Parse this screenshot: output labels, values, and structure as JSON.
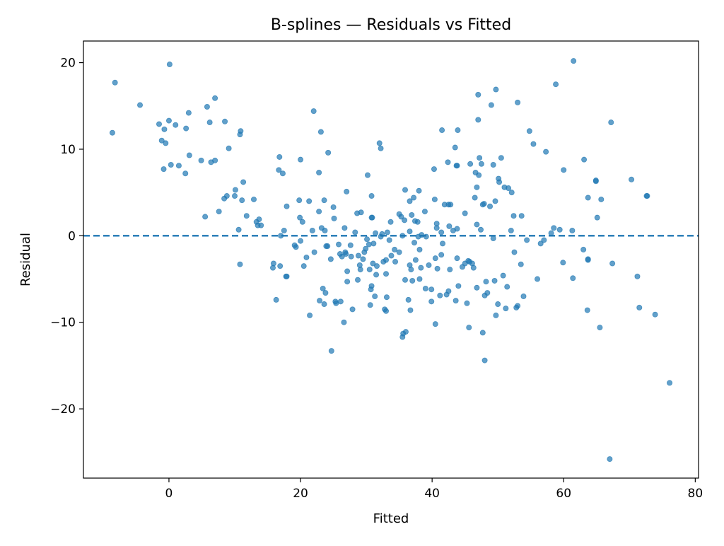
{
  "chart_data": {
    "type": "scatter",
    "title": "B-splines — Residuals vs Fitted",
    "xlabel": "Fitted",
    "ylabel": "Residual",
    "xlim": [
      -13,
      80.5
    ],
    "ylim": [
      -28,
      22.5
    ],
    "x_ticks": [
      0,
      20,
      40,
      60,
      80
    ],
    "x_tick_labels": [
      "0",
      "20",
      "40",
      "60",
      "80"
    ],
    "y_ticks": [
      -20,
      -10,
      0,
      10,
      20
    ],
    "y_tick_labels": [
      "−20",
      "−10",
      "0",
      "10",
      "20"
    ],
    "grid": false,
    "reference_line": {
      "y": 0,
      "style": "dashed",
      "color": "#1f77b4"
    },
    "point_color": "#1f77b4",
    "point_opacity": 0.7,
    "points": [
      [
        -8.6,
        11.9
      ],
      [
        -8.2,
        17.7
      ],
      [
        -4.4,
        15.1
      ],
      [
        -1.5,
        12.9
      ],
      [
        -1.1,
        11.0
      ],
      [
        -0.8,
        7.7
      ],
      [
        -0.7,
        12.3
      ],
      [
        -0.5,
        10.7
      ],
      [
        0.0,
        13.3
      ],
      [
        0.1,
        19.8
      ],
      [
        0.3,
        8.2
      ],
      [
        1.0,
        12.8
      ],
      [
        1.5,
        8.1
      ],
      [
        2.5,
        7.2
      ],
      [
        2.6,
        12.4
      ],
      [
        3.0,
        14.2
      ],
      [
        3.1,
        9.3
      ],
      [
        4.9,
        8.7
      ],
      [
        5.5,
        2.2
      ],
      [
        5.8,
        14.9
      ],
      [
        6.2,
        13.1
      ],
      [
        6.4,
        8.5
      ],
      [
        7.0,
        8.7
      ],
      [
        7.0,
        15.9
      ],
      [
        7.6,
        2.8
      ],
      [
        8.4,
        4.3
      ],
      [
        8.5,
        13.2
      ],
      [
        8.8,
        4.6
      ],
      [
        9.1,
        10.1
      ],
      [
        10.0,
        4.6
      ],
      [
        10.1,
        5.3
      ],
      [
        10.6,
        0.7
      ],
      [
        10.8,
        -3.3
      ],
      [
        10.8,
        11.7
      ],
      [
        10.9,
        12.1
      ],
      [
        11.1,
        4.1
      ],
      [
        11.3,
        6.2
      ],
      [
        11.8,
        2.3
      ],
      [
        12.9,
        4.2
      ],
      [
        13.3,
        1.6
      ],
      [
        13.5,
        1.2
      ],
      [
        13.7,
        1.9
      ],
      [
        14.0,
        1.2
      ],
      [
        15.8,
        -3.7
      ],
      [
        15.9,
        -3.2
      ],
      [
        16.3,
        -7.4
      ],
      [
        16.7,
        7.6
      ],
      [
        16.8,
        9.1
      ],
      [
        16.9,
        -3.5
      ],
      [
        17.0,
        0.0
      ],
      [
        17.3,
        7.2
      ],
      [
        17.5,
        0.6
      ],
      [
        17.8,
        -4.7
      ],
      [
        17.9,
        -4.7
      ],
      [
        17.9,
        3.4
      ],
      [
        19.1,
        -1.1
      ],
      [
        19.3,
        -1.3
      ],
      [
        19.8,
        4.1
      ],
      [
        19.9,
        2.1
      ],
      [
        20.0,
        -0.6
      ],
      [
        20.0,
        8.8
      ],
      [
        20.3,
        1.6
      ],
      [
        20.5,
        -3.5
      ],
      [
        20.9,
        -2.5
      ],
      [
        21.3,
        4.0
      ],
      [
        21.4,
        -9.2
      ],
      [
        21.8,
        0.6
      ],
      [
        22.0,
        14.4
      ],
      [
        22.1,
        -1.9
      ],
      [
        22.8,
        2.8
      ],
      [
        22.8,
        7.3
      ],
      [
        22.9,
        -7.5
      ],
      [
        23.1,
        12.0
      ],
      [
        23.2,
        0.9
      ],
      [
        23.4,
        -6.1
      ],
      [
        23.6,
        4.1
      ],
      [
        23.6,
        -7.9
      ],
      [
        23.7,
        0.6
      ],
      [
        23.8,
        -6.6
      ],
      [
        23.9,
        -1.2
      ],
      [
        24.1,
        -1.2
      ],
      [
        24.2,
        9.6
      ],
      [
        24.6,
        -2.7
      ],
      [
        24.7,
        -13.3
      ],
      [
        25.0,
        3.3
      ],
      [
        25.1,
        2.0
      ],
      [
        25.3,
        -7.6
      ],
      [
        25.4,
        -7.8
      ],
      [
        25.8,
        -1.0
      ],
      [
        26.0,
        -2.1
      ],
      [
        26.1,
        -7.6
      ],
      [
        26.3,
        -2.4
      ],
      [
        26.6,
        -10.0
      ],
      [
        26.7,
        0.9
      ],
      [
        26.8,
        -1.9
      ],
      [
        26.9,
        -2.1
      ],
      [
        27.0,
        5.1
      ],
      [
        27.1,
        -4.1
      ],
      [
        27.1,
        -5.3
      ],
      [
        27.6,
        -1.1
      ],
      [
        27.7,
        -2.4
      ],
      [
        27.9,
        -8.5
      ],
      [
        28.3,
        0.4
      ],
      [
        28.6,
        2.6
      ],
      [
        28.7,
        -5.1
      ],
      [
        28.8,
        -2.3
      ],
      [
        29.0,
        -3.4
      ],
      [
        29.1,
        -3.9
      ],
      [
        29.2,
        2.7
      ],
      [
        29.5,
        -2.7
      ],
      [
        29.7,
        -1.9
      ],
      [
        29.9,
        -1.5
      ],
      [
        30.1,
        -0.4
      ],
      [
        30.2,
        7.0
      ],
      [
        30.4,
        -1.0
      ],
      [
        30.5,
        -3.9
      ],
      [
        30.6,
        -8.0
      ],
      [
        30.7,
        -6.2
      ],
      [
        30.8,
        4.6
      ],
      [
        30.8,
        -5.8
      ],
      [
        30.8,
        2.1
      ],
      [
        30.9,
        2.1
      ],
      [
        31.0,
        -3.2
      ],
      [
        31.1,
        -0.9
      ],
      [
        31.3,
        -7.0
      ],
      [
        31.4,
        0.3
      ],
      [
        31.5,
        -4.5
      ],
      [
        31.6,
        -3.5
      ],
      [
        32.0,
        10.7
      ],
      [
        32.2,
        -0.1
      ],
      [
        32.2,
        10.1
      ],
      [
        32.4,
        0.2
      ],
      [
        32.6,
        -3.0
      ],
      [
        32.8,
        -8.5
      ],
      [
        33.0,
        -8.7
      ],
      [
        33.0,
        -4.4
      ],
      [
        33.0,
        -2.8
      ],
      [
        33.1,
        -7.1
      ],
      [
        33.2,
        0.4
      ],
      [
        33.5,
        -0.5
      ],
      [
        33.7,
        1.6
      ],
      [
        33.8,
        -2.3
      ],
      [
        34.3,
        -1.6
      ],
      [
        34.4,
        -3.0
      ],
      [
        35.0,
        -1.9
      ],
      [
        35.0,
        2.5
      ],
      [
        35.3,
        2.2
      ],
      [
        35.5,
        0.0
      ],
      [
        35.5,
        -11.7
      ],
      [
        35.6,
        -11.3
      ],
      [
        35.8,
        1.8
      ],
      [
        35.9,
        5.3
      ],
      [
        35.9,
        -5.1
      ],
      [
        36.0,
        -11.1
      ],
      [
        36.4,
        -7.4
      ],
      [
        36.6,
        0.5
      ],
      [
        36.6,
        -3.4
      ],
      [
        36.6,
        4.0
      ],
      [
        36.7,
        -8.6
      ],
      [
        36.8,
        -3.9
      ],
      [
        36.9,
        2.4
      ],
      [
        37.0,
        -5.2
      ],
      [
        37.2,
        4.4
      ],
      [
        37.3,
        -0.8
      ],
      [
        37.4,
        1.7
      ],
      [
        37.5,
        -2.8
      ],
      [
        37.8,
        1.6
      ],
      [
        37.9,
        -0.1
      ],
      [
        38.0,
        5.2
      ],
      [
        38.1,
        -5.0
      ],
      [
        38.1,
        -1.6
      ],
      [
        38.3,
        -3.7
      ],
      [
        38.4,
        0.1
      ],
      [
        38.9,
        2.8
      ],
      [
        39.0,
        -6.1
      ],
      [
        39.1,
        -0.1
      ],
      [
        39.5,
        -3.4
      ],
      [
        39.9,
        -7.6
      ],
      [
        39.9,
        -6.2
      ],
      [
        40.3,
        7.7
      ],
      [
        40.4,
        4.2
      ],
      [
        40.5,
        -2.6
      ],
      [
        40.5,
        -10.2
      ],
      [
        40.7,
        0.9
      ],
      [
        40.7,
        1.4
      ],
      [
        40.8,
        -3.8
      ],
      [
        41.2,
        -6.9
      ],
      [
        41.4,
        0.4
      ],
      [
        41.4,
        -2.2
      ],
      [
        41.5,
        12.2
      ],
      [
        41.6,
        -0.9
      ],
      [
        41.9,
        3.6
      ],
      [
        42.2,
        -6.8
      ],
      [
        42.4,
        8.5
      ],
      [
        42.5,
        -6.4
      ],
      [
        42.5,
        3.6
      ],
      [
        42.6,
        1.1
      ],
      [
        42.7,
        -3.9
      ],
      [
        42.8,
        3.6
      ],
      [
        43.2,
        0.6
      ],
      [
        43.5,
        10.2
      ],
      [
        43.6,
        -7.5
      ],
      [
        43.7,
        8.1
      ],
      [
        43.8,
        0.8
      ],
      [
        43.8,
        -2.6
      ],
      [
        43.8,
        8.1
      ],
      [
        43.9,
        12.2
      ],
      [
        44.0,
        -5.8
      ],
      [
        44.6,
        -3.6
      ],
      [
        45.0,
        -3.2
      ],
      [
        45.0,
        2.6
      ],
      [
        45.3,
        -7.8
      ],
      [
        45.5,
        -2.9
      ],
      [
        45.6,
        -10.6
      ],
      [
        45.7,
        -3.0
      ],
      [
        45.8,
        8.3
      ],
      [
        46.1,
        -3.2
      ],
      [
        46.3,
        -3.7
      ],
      [
        46.5,
        4.4
      ],
      [
        46.6,
        7.3
      ],
      [
        46.8,
        5.6
      ],
      [
        46.8,
        1.3
      ],
      [
        46.8,
        -6.0
      ],
      [
        47.0,
        13.4
      ],
      [
        47.0,
        16.3
      ],
      [
        47.1,
        7.0
      ],
      [
        47.2,
        9.0
      ],
      [
        47.4,
        0.7
      ],
      [
        47.5,
        8.3
      ],
      [
        47.7,
        -11.2
      ],
      [
        47.7,
        3.6
      ],
      [
        47.9,
        3.7
      ],
      [
        48.0,
        -6.9
      ],
      [
        48.0,
        -14.4
      ],
      [
        48.2,
        -5.3
      ],
      [
        48.4,
        -6.6
      ],
      [
        48.8,
        3.4
      ],
      [
        49.0,
        15.1
      ],
      [
        49.3,
        -0.3
      ],
      [
        49.3,
        8.2
      ],
      [
        49.5,
        -5.2
      ],
      [
        49.6,
        4.0
      ],
      [
        49.7,
        16.9
      ],
      [
        49.7,
        -9.2
      ],
      [
        50.0,
        -7.9
      ],
      [
        50.1,
        6.6
      ],
      [
        50.2,
        6.2
      ],
      [
        50.5,
        9.0
      ],
      [
        50.8,
        -4.6
      ],
      [
        51.0,
        5.6
      ],
      [
        51.2,
        -8.4
      ],
      [
        51.4,
        -5.9
      ],
      [
        51.6,
        5.5
      ],
      [
        52.0,
        0.6
      ],
      [
        52.1,
        5.0
      ],
      [
        52.4,
        2.3
      ],
      [
        52.5,
        -1.9
      ],
      [
        52.8,
        -8.3
      ],
      [
        53.0,
        -8.1
      ],
      [
        53.0,
        15.4
      ],
      [
        53.5,
        -3.3
      ],
      [
        53.6,
        2.3
      ],
      [
        53.9,
        -7.0
      ],
      [
        54.4,
        -0.5
      ],
      [
        54.8,
        12.1
      ],
      [
        55.4,
        10.6
      ],
      [
        56.0,
        -5.0
      ],
      [
        56.5,
        -0.9
      ],
      [
        57.0,
        -0.5
      ],
      [
        57.3,
        9.7
      ],
      [
        58.1,
        0.3
      ],
      [
        58.5,
        0.9
      ],
      [
        58.8,
        17.5
      ],
      [
        59.4,
        0.7
      ],
      [
        59.9,
        -3.1
      ],
      [
        60.0,
        7.6
      ],
      [
        61.3,
        0.6
      ],
      [
        61.4,
        -4.9
      ],
      [
        61.5,
        20.2
      ],
      [
        63.0,
        -1.6
      ],
      [
        63.1,
        8.8
      ],
      [
        63.6,
        -8.6
      ],
      [
        63.7,
        -2.7
      ],
      [
        63.7,
        -2.8
      ],
      [
        63.7,
        4.4
      ],
      [
        64.9,
        6.4
      ],
      [
        64.9,
        6.3
      ],
      [
        65.1,
        2.1
      ],
      [
        65.5,
        -10.6
      ],
      [
        65.7,
        4.2
      ],
      [
        67.0,
        -25.8
      ],
      [
        67.2,
        13.1
      ],
      [
        67.4,
        -3.2
      ],
      [
        70.3,
        6.5
      ],
      [
        71.2,
        -4.7
      ],
      [
        71.5,
        -8.3
      ],
      [
        72.6,
        4.6
      ],
      [
        72.7,
        4.6
      ],
      [
        73.9,
        -9.1
      ],
      [
        76.1,
        -17.0
      ]
    ]
  }
}
